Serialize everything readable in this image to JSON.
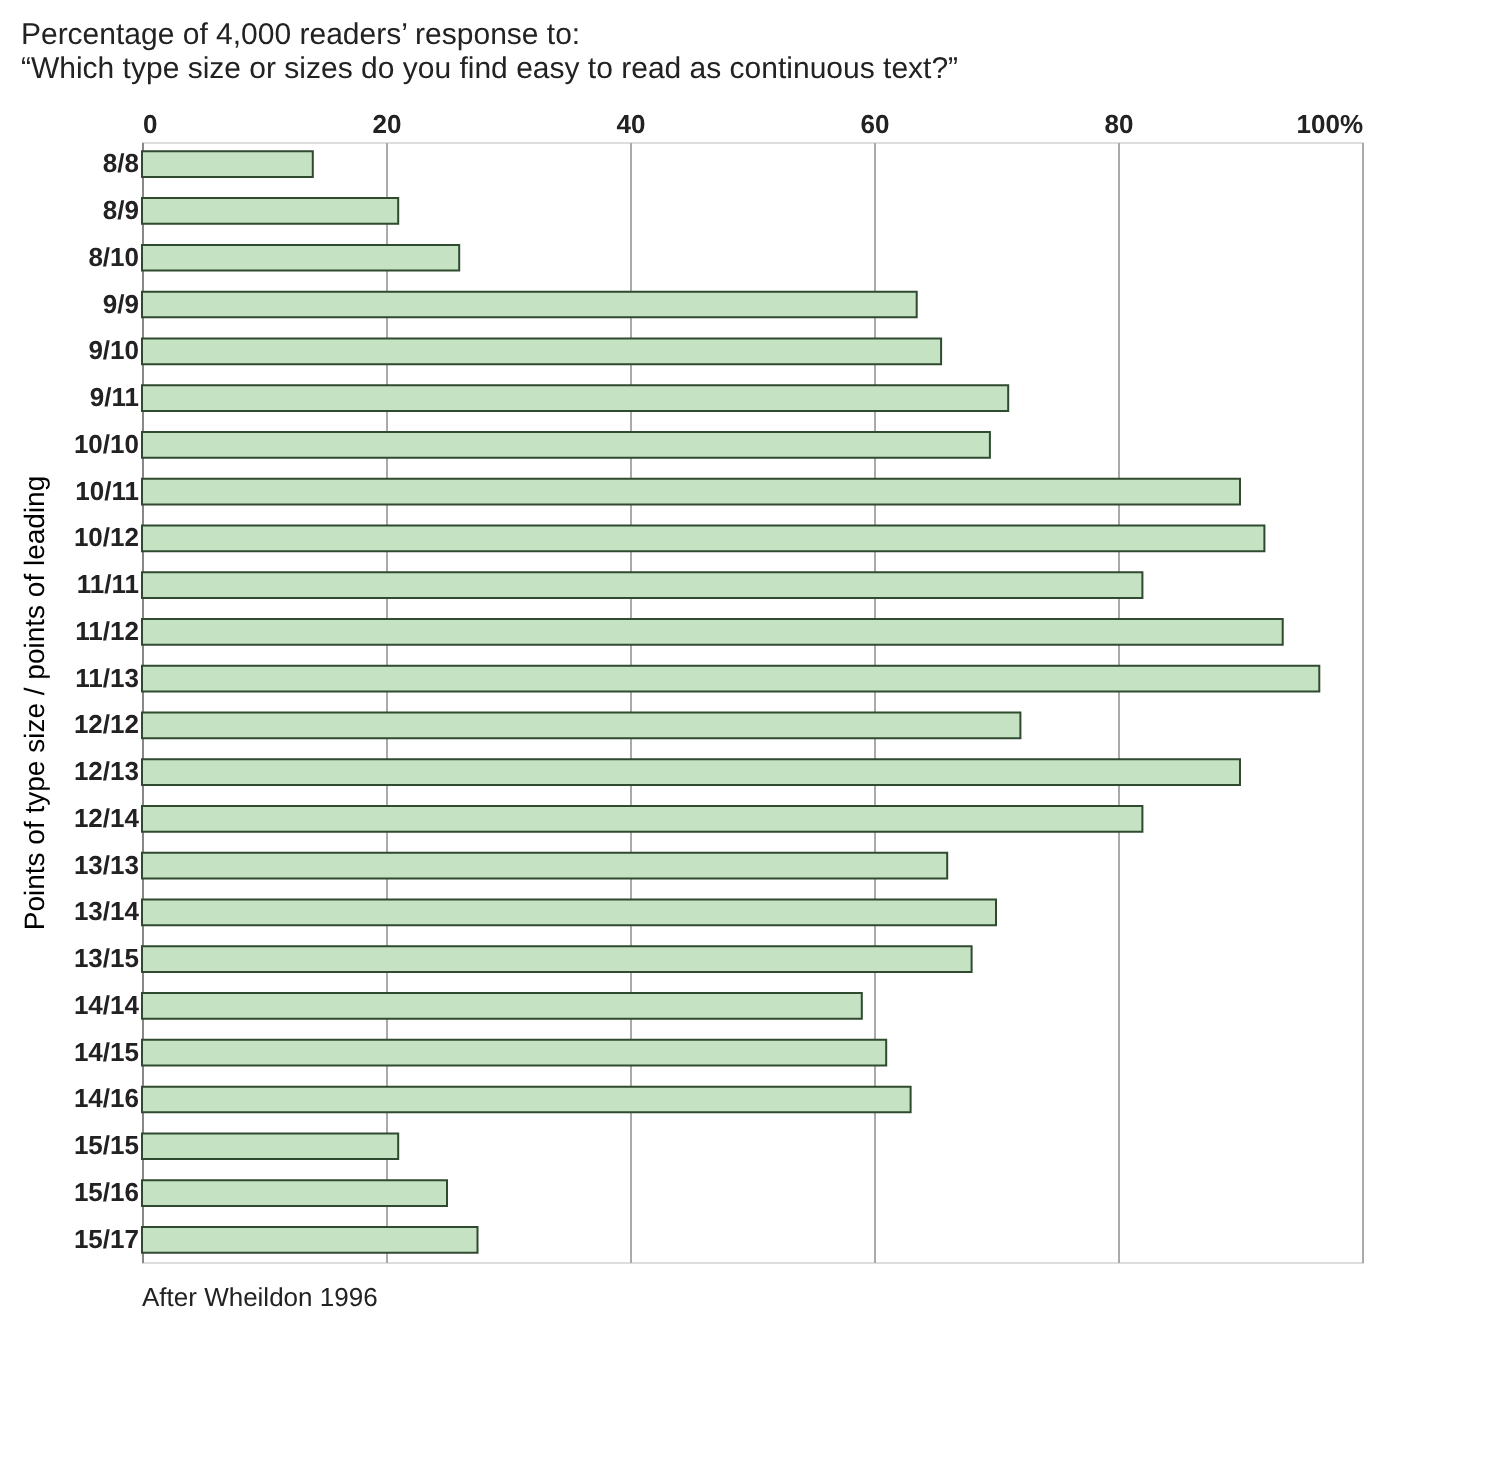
{
  "chart_data": {
    "type": "bar",
    "orientation": "horizontal",
    "title": "Percentage of 4,000 readers’ response to:\n“Which type size or sizes do you find easy to read as continuous text?”",
    "ylabel": "Points of type size / points of leading",
    "categories": [
      "8/8",
      "8/9",
      "8/10",
      "9/9",
      "9/10",
      "9/11",
      "10/10",
      "10/11",
      "10/12",
      "11/11",
      "11/12",
      "11/13",
      "12/12",
      "12/13",
      "12/14",
      "13/13",
      "13/14",
      "13/15",
      "14/14",
      "14/15",
      "14/16",
      "15/15",
      "15/16",
      "15/17"
    ],
    "values": [
      14,
      21,
      26,
      63.5,
      65.5,
      71,
      69.5,
      90,
      92,
      82,
      93.5,
      96.5,
      72,
      90,
      82,
      66,
      70,
      68,
      59,
      61,
      63,
      21,
      25,
      27.5
    ],
    "color": "#c5e2c3",
    "xlim": [
      0,
      100
    ],
    "xticks": [
      0,
      20,
      40,
      60,
      80,
      {
        "value": 100,
        "label": "100%"
      }
    ],
    "grid": "x",
    "annotations": [
      "After Wheildon 1996"
    ]
  }
}
